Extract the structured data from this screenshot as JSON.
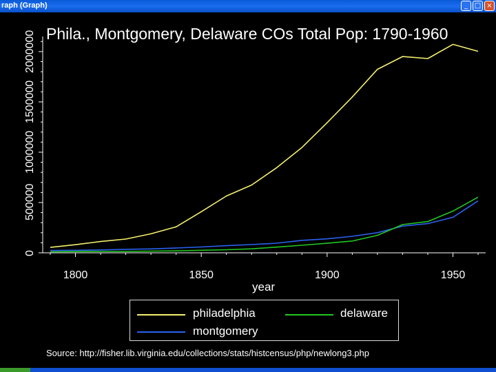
{
  "window": {
    "title": "raph (Graph)",
    "minimize_glyph": "_",
    "maximize_glyph": "□",
    "close_glyph": "×"
  },
  "colors": {
    "philadelphia": "#f5f06e",
    "montgomery": "#2a62f0",
    "delaware": "#22c822",
    "axis": "#ffffff"
  },
  "chart_data": {
    "type": "line",
    "title": "Phila., Montgomery, Delaware COs Total Pop: 1790-1960",
    "xlabel": "year",
    "ylabel": "",
    "x": [
      1790,
      1800,
      1810,
      1820,
      1830,
      1840,
      1850,
      1860,
      1870,
      1880,
      1890,
      1900,
      1910,
      1920,
      1930,
      1940,
      1950,
      1960
    ],
    "xlim": [
      1787,
      1963
    ],
    "ylim": [
      0,
      2150000
    ],
    "xticks": [
      "1800",
      "1850",
      "1900",
      "1950"
    ],
    "yticks": [
      "0",
      "500000",
      "1000000",
      "1500000",
      "2000000"
    ],
    "ytick_values": [
      0,
      500000,
      1000000,
      1500000,
      2000000
    ],
    "series": [
      {
        "name": "philadelphia",
        "color_key": "philadelphia",
        "values": [
          54000,
          81000,
          112000,
          137000,
          189000,
          258000,
          409000,
          565000,
          674000,
          847000,
          1047000,
          1293000,
          1549000,
          1824000,
          1951000,
          1931000,
          2072000,
          2003000
        ]
      },
      {
        "name": "montgomery",
        "color_key": "montgomery",
        "values": [
          23000,
          25000,
          29000,
          35000,
          39000,
          48000,
          58000,
          71000,
          82000,
          96000,
          124000,
          139000,
          164000,
          200000,
          266000,
          290000,
          353000,
          516000
        ]
      },
      {
        "name": "delaware",
        "color_key": "delaware",
        "values": [
          10000,
          12000,
          14000,
          14000,
          17000,
          19000,
          25000,
          31000,
          40000,
          57000,
          75000,
          95000,
          117000,
          174000,
          281000,
          311000,
          415000,
          553000
        ]
      }
    ],
    "legend": [
      "philadelphia",
      "delaware",
      "montgomery"
    ],
    "source": "Source: http://fisher.lib.virginia.edu/collections/stats/histcensus/php/newlong3.php"
  }
}
